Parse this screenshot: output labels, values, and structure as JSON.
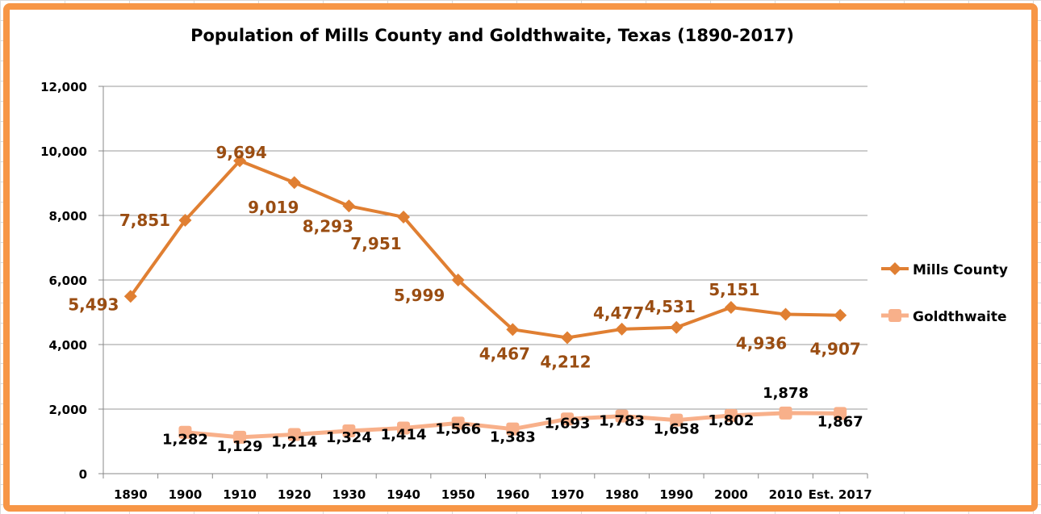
{
  "chart_data": {
    "type": "line",
    "title": "Population of Mills County and Goldthwaite, Texas (1890-2017)",
    "categories": [
      "1890",
      "1900",
      "1910",
      "1920",
      "1930",
      "1940",
      "1950",
      "1960",
      "1970",
      "1980",
      "1990",
      "2000",
      "2010",
      "Est. 2017"
    ],
    "ylim": [
      0,
      12000
    ],
    "yticks": [
      "0",
      "2,000",
      "4,000",
      "6,000",
      "8,000",
      "10,000",
      "12,000"
    ],
    "ytick_values": [
      0,
      2000,
      4000,
      6000,
      8000,
      10000,
      12000
    ],
    "grid": true,
    "legend_position": "right",
    "series": [
      {
        "name": "Mills County",
        "color": "#e07f32",
        "label_color": "#9a4d12",
        "marker": "diamond",
        "values": [
          5493,
          7851,
          9694,
          9019,
          8293,
          7951,
          5999,
          4467,
          4212,
          4477,
          4531,
          5151,
          4936,
          4907
        ],
        "labels": [
          "5,493",
          "7,851",
          "9,694",
          "9,019",
          "8,293",
          "7,951",
          "5,999",
          "4,467",
          "4,212",
          "4,477",
          "4,531",
          "5,151",
          "4,936",
          "4,907"
        ]
      },
      {
        "name": "Goldthwaite",
        "color": "#f8b08a",
        "label_color": "#000000",
        "marker": "square",
        "values": [
          null,
          1282,
          1129,
          1214,
          1324,
          1414,
          1566,
          1383,
          1693,
          1783,
          1658,
          1802,
          1878,
          1867
        ],
        "labels": [
          null,
          "1,282",
          "1,129",
          "1,214",
          "1,324",
          "1,414",
          "1,566",
          "1,383",
          "1,693",
          "1,783",
          "1,658",
          "1,802",
          "1,878",
          "1,867"
        ]
      }
    ]
  }
}
